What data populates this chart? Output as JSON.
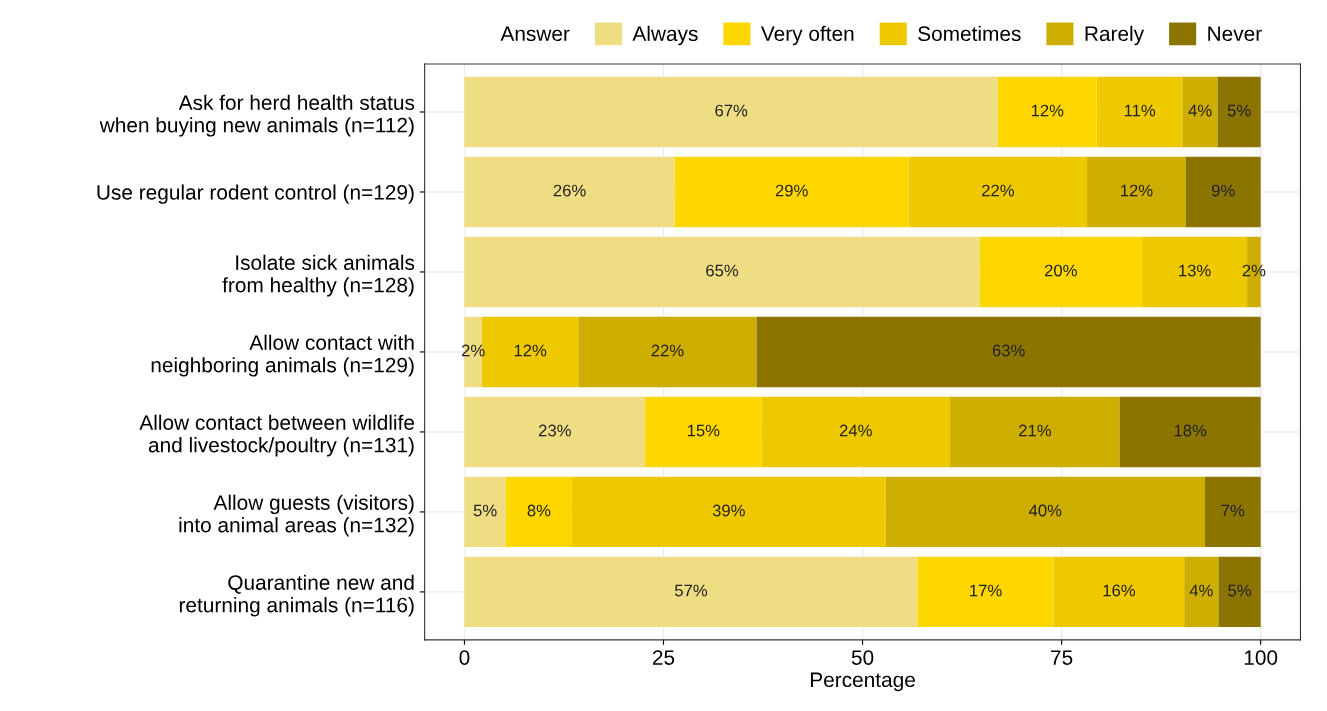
{
  "chart_data": {
    "type": "bar",
    "orientation": "horizontal",
    "stacked": true,
    "xlabel": "Percentage",
    "legend_title": "Answer",
    "legend": "top",
    "grid": true,
    "categories": [
      "Ask for herd health status\nwhen buying new animals (n=112)",
      "Use regular rodent control (n=129)",
      "Isolate sick animals\nfrom healthy (n=128)",
      "Allow contact with\nneighboring animals (n=129)",
      "Allow contact between wildlife\nand livestock/poultry (n=131)",
      "Allow guests (visitors)\ninto animal areas (n=132)",
      "Quarantine new and\nreturning animals (n=116)"
    ],
    "xlim": [
      -5,
      105
    ],
    "xticks": [
      0,
      25,
      50,
      75,
      100
    ],
    "series": [
      {
        "name": "Always",
        "color": "#eedd82",
        "values": [
          67.0,
          26.4,
          64.7,
          2.2,
          22.7,
          5.2,
          56.9
        ],
        "value_labels": [
          "67%",
          "26%",
          "65%",
          "2%",
          "23%",
          "5%",
          "57%"
        ]
      },
      {
        "name": "Very often",
        "color": "#ffd700",
        "values": [
          12.4,
          29.4,
          20.4,
          0,
          14.6,
          8.3,
          17.1
        ],
        "value_labels": [
          "12%",
          "29%",
          "20%",
          null,
          "15%",
          "8%",
          "17%"
        ]
      },
      {
        "name": "Sometimes",
        "color": "#eec900",
        "values": [
          10.8,
          22.4,
          13.2,
          12.1,
          23.7,
          39.4,
          16.4
        ],
        "value_labels": [
          "11%",
          "22%",
          "13%",
          "12%",
          "24%",
          "39%",
          "16%"
        ]
      },
      {
        "name": "Rarely",
        "color": "#cdad00",
        "values": [
          4.4,
          12.4,
          1.7,
          22.4,
          21.3,
          40.1,
          4.3
        ],
        "value_labels": [
          "4%",
          "12%",
          "2%",
          "22%",
          "21%",
          "40%",
          "4%"
        ]
      },
      {
        "name": "Never",
        "color": "#8b7500",
        "values": [
          5.4,
          9.4,
          0,
          63.3,
          17.7,
          7.0,
          5.3
        ],
        "value_labels": [
          "5%",
          "9%",
          null,
          "63%",
          "18%",
          "7%",
          "5%"
        ]
      }
    ]
  }
}
